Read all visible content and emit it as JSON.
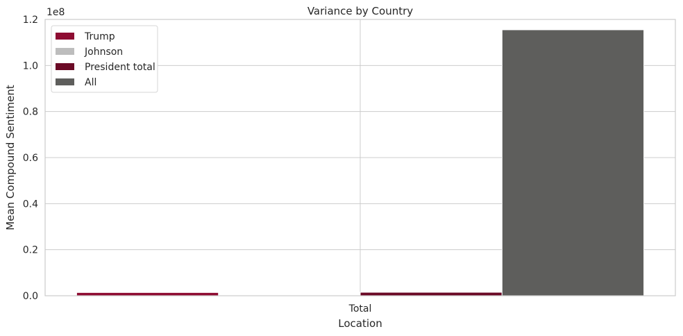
{
  "chart_data": {
    "type": "bar",
    "title": "Variance by Country",
    "xlabel": "Location",
    "ylabel": "Mean Compound Sentiment",
    "y_offset_label": "1e8",
    "y_scale_factor": 100000000,
    "categories": [
      "Total"
    ],
    "ylim": [
      0,
      1.2
    ],
    "yticks": [
      "0.0",
      "0.2",
      "0.4",
      "0.6",
      "0.8",
      "1.0",
      "1.2"
    ],
    "grid": true,
    "legend_position": "top-left",
    "series": [
      {
        "name": "Trump",
        "color": "#8e0c32",
        "values": [
          0.014
        ]
      },
      {
        "name": "Johnson",
        "color": "#bdbdbd",
        "values": [
          0.0006
        ]
      },
      {
        "name": "President total",
        "color": "#6b0a26",
        "values": [
          0.015
        ]
      },
      {
        "name": "All",
        "color": "#5e5e5c",
        "values": [
          1.155
        ]
      }
    ]
  }
}
